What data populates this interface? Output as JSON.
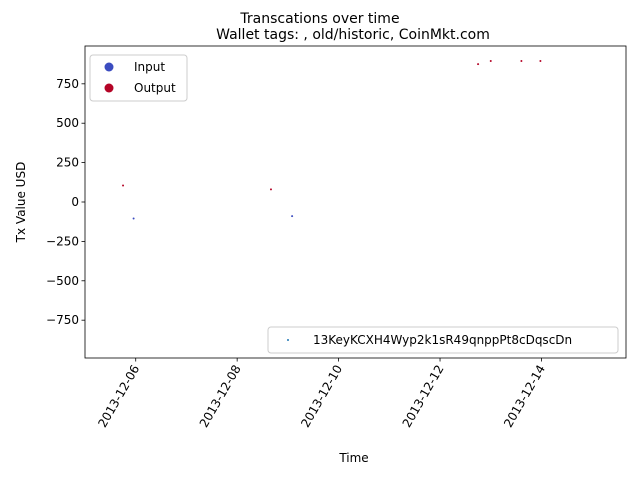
{
  "chart_data": {
    "type": "scatter",
    "suptitle": "Transcations over time",
    "title": "Wallet tags: , old/historic, CoinMkt.com",
    "xlabel": "Time",
    "ylabel": "Tx Value USD",
    "xlim": [
      "2013-12-05T00:00",
      "2013-12-15T16:00"
    ],
    "ylim": [
      -990,
      990
    ],
    "xticks": [
      "2013-12-06",
      "2013-12-08",
      "2013-12-10",
      "2013-12-12",
      "2013-12-14"
    ],
    "yticks": [
      750,
      500,
      250,
      0,
      -250,
      -500,
      -750
    ],
    "ytick_labels": [
      "750",
      "500",
      "250",
      "0",
      "−250",
      "−500",
      "−750"
    ],
    "grid": false,
    "legend_top_left": {
      "position": "upper-left",
      "entries": [
        {
          "label": "Input",
          "color": "#3b4cc0"
        },
        {
          "label": "Output",
          "color": "#b40426"
        }
      ]
    },
    "legend_bottom_right": {
      "position": "lower-right",
      "entries": [
        {
          "label": "13KeyKCXH4Wyp2k1sR49qnppPt8cDqscDn",
          "color": "#1f77b4"
        }
      ]
    },
    "series": [
      {
        "name": "Input",
        "color": "#3b4cc0",
        "points": [
          {
            "x": "2013-12-05T23:00",
            "y": -105
          },
          {
            "x": "2013-12-09T02:00",
            "y": -90
          }
        ]
      },
      {
        "name": "Output",
        "color": "#b40426",
        "points": [
          {
            "x": "2013-12-05T18:00",
            "y": 105
          },
          {
            "x": "2013-12-08T16:00",
            "y": 80
          },
          {
            "x": "2013-12-12T18:00",
            "y": 875
          },
          {
            "x": "2013-12-13T00:00",
            "y": 895
          },
          {
            "x": "2013-12-13T14:30",
            "y": 895
          },
          {
            "x": "2013-12-13T23:30",
            "y": 895
          }
        ]
      }
    ]
  }
}
